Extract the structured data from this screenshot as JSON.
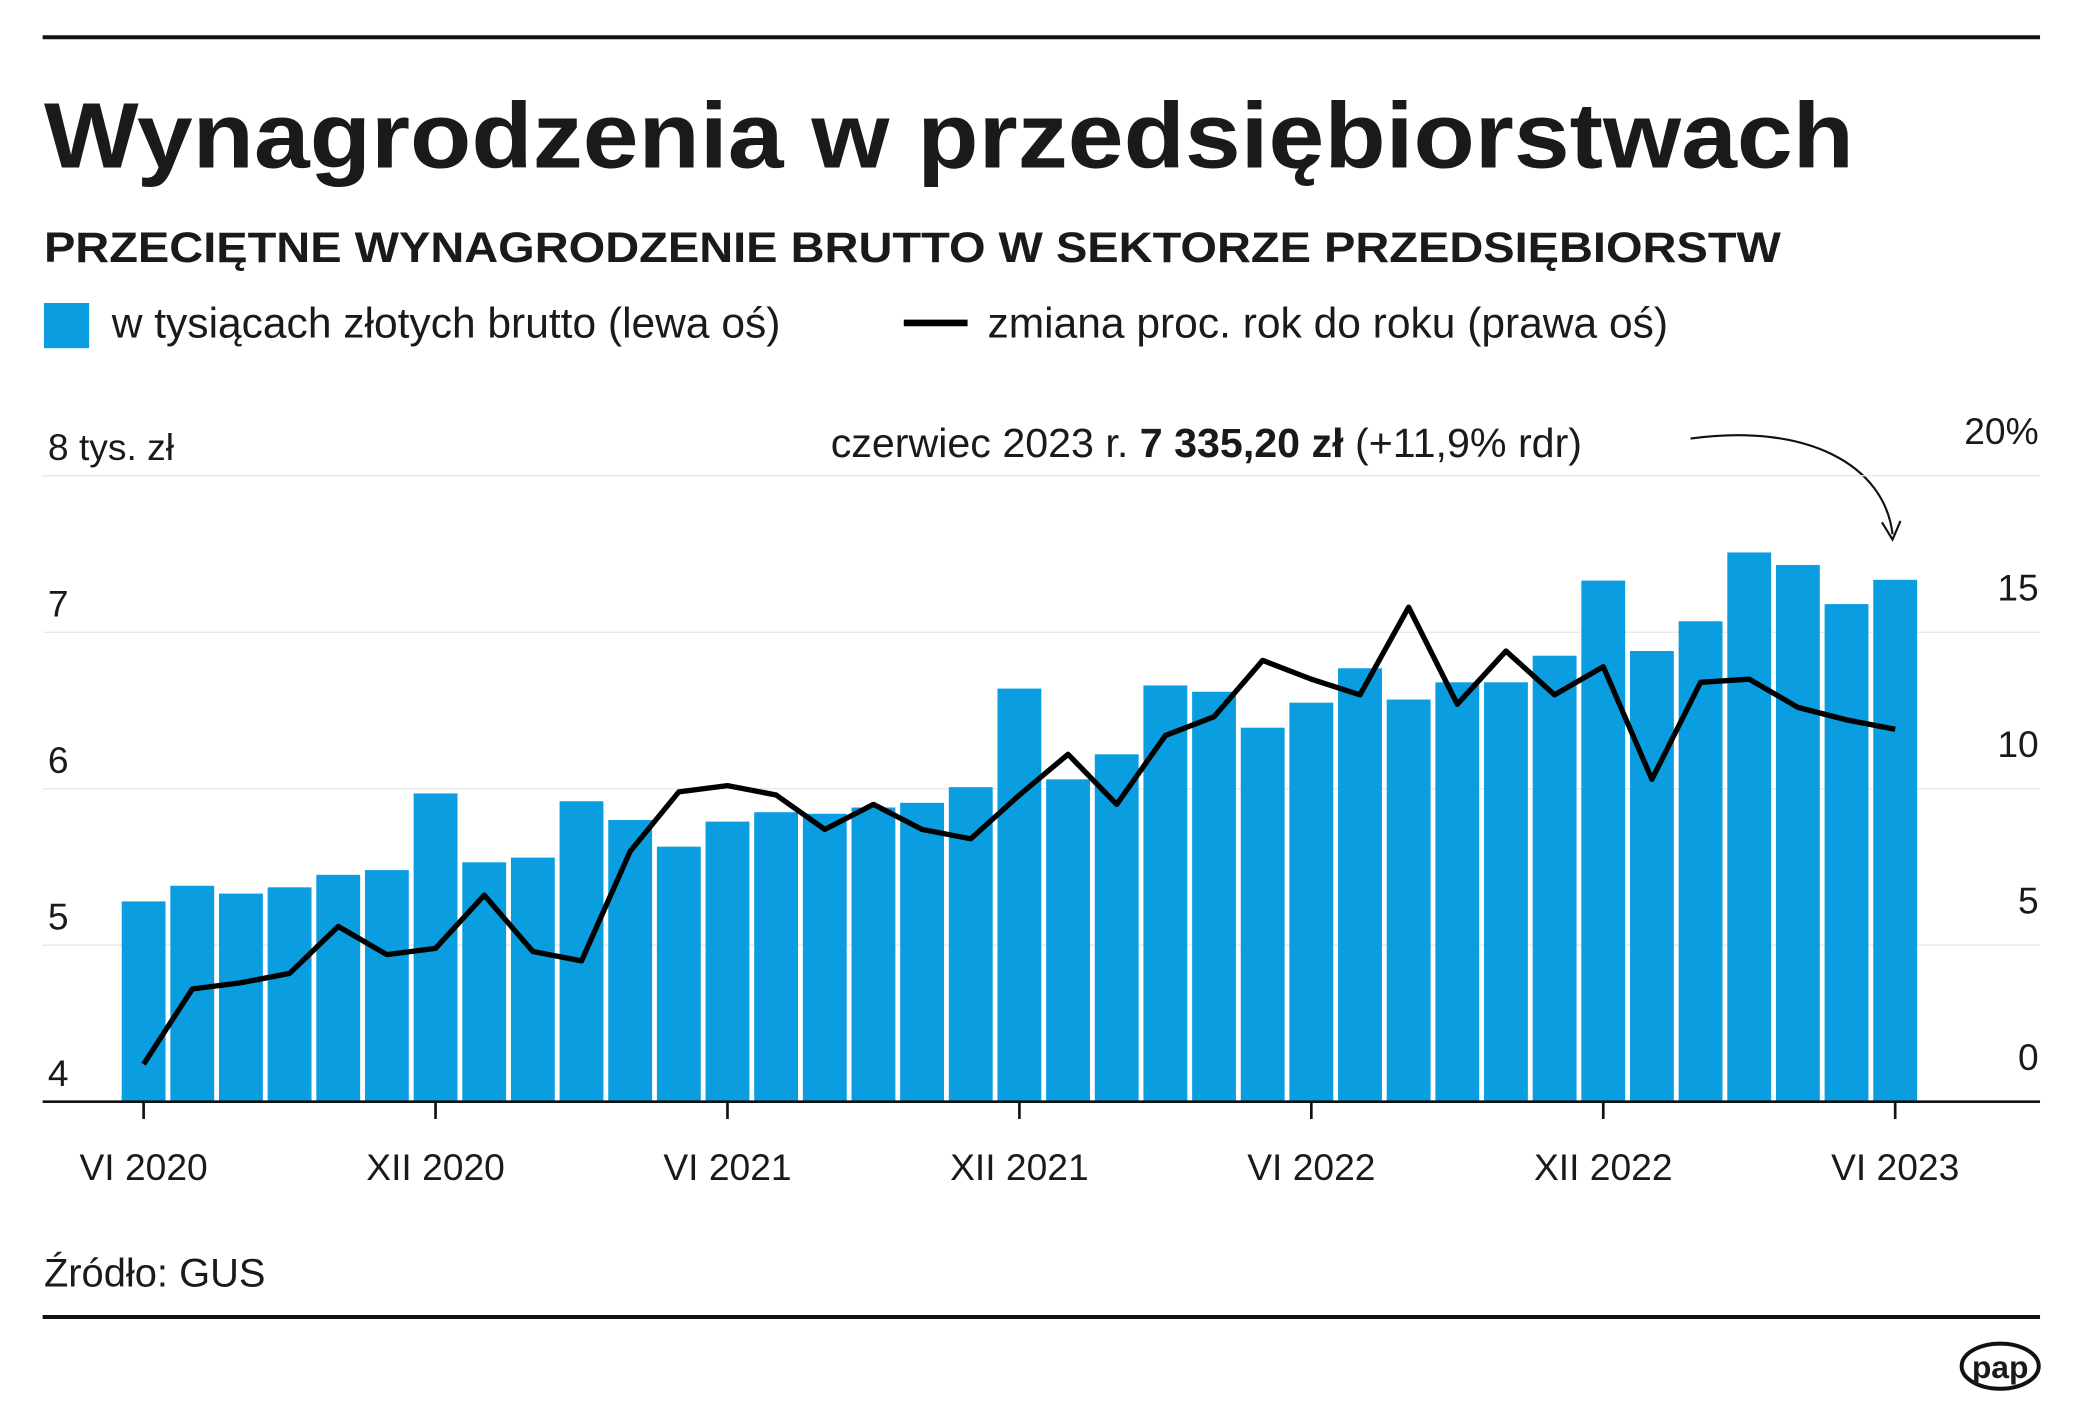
{
  "chart_data": {
    "type": "bar_line",
    "title": "Wynagrodzenia w przedsiębiorstwach",
    "subtitle": "PRZECIĘTNE WYNAGRODZENIE BRUTTO W SEKTORZE PRZEDSIĘBIORSTW",
    "annotation": {
      "prefix": "czerwiec 2023 r.",
      "value": "7 335,20 zł",
      "suffix": "(+11,9% rdr)"
    },
    "source": "Źródło: GUS",
    "logo": "pap",
    "categories": [
      "VI 2020",
      null,
      null,
      null,
      null,
      null,
      "XII 2020",
      null,
      null,
      null,
      null,
      null,
      "VI 2021",
      null,
      null,
      null,
      null,
      null,
      "XII 2021",
      null,
      null,
      null,
      null,
      null,
      "VI 2022",
      null,
      null,
      null,
      null,
      null,
      "XII 2022",
      null,
      null,
      null,
      null,
      null,
      "VI 2023"
    ],
    "series": [
      {
        "name": "w tysiącach złotych brutto (lewa oś)",
        "color": "#0a9ee0",
        "type": "bar",
        "values": [
          5.28,
          5.38,
          5.33,
          5.37,
          5.45,
          5.48,
          5.97,
          5.53,
          5.56,
          5.92,
          5.8,
          5.63,
          5.79,
          5.85,
          5.84,
          5.88,
          5.91,
          6.01,
          6.64,
          6.06,
          6.22,
          6.66,
          6.62,
          6.39,
          6.55,
          6.77,
          6.57,
          6.68,
          6.68,
          6.85,
          7.33,
          6.88,
          7.07,
          7.51,
          7.43,
          7.18,
          7.3352
        ]
      },
      {
        "name": "zmiana proc. rok do roku (prawa oś)",
        "color": "#000000",
        "type": "line",
        "axis": "y2",
        "values": [
          1.2,
          3.6,
          3.8,
          4.1,
          5.6,
          4.7,
          4.9,
          6.6,
          4.8,
          4.5,
          8.0,
          9.9,
          10.1,
          9.8,
          8.7,
          9.5,
          8.7,
          8.4,
          9.8,
          11.1,
          9.5,
          11.7,
          12.3,
          14.1,
          13.5,
          13.0,
          15.8,
          12.7,
          14.4,
          13.0,
          13.9,
          10.3,
          13.4,
          13.5,
          12.6,
          12.2,
          11.9
        ]
      }
    ],
    "ylim": [
      4,
      8
    ],
    "yticks": [
      4,
      5,
      6,
      7,
      {
        "value": 8,
        "label": "8 tys. zł"
      }
    ],
    "y2lim": [
      0,
      20
    ],
    "y2ticks": [
      0,
      5,
      10,
      15,
      {
        "value": 20,
        "label": "20%"
      }
    ],
    "grid": true
  }
}
